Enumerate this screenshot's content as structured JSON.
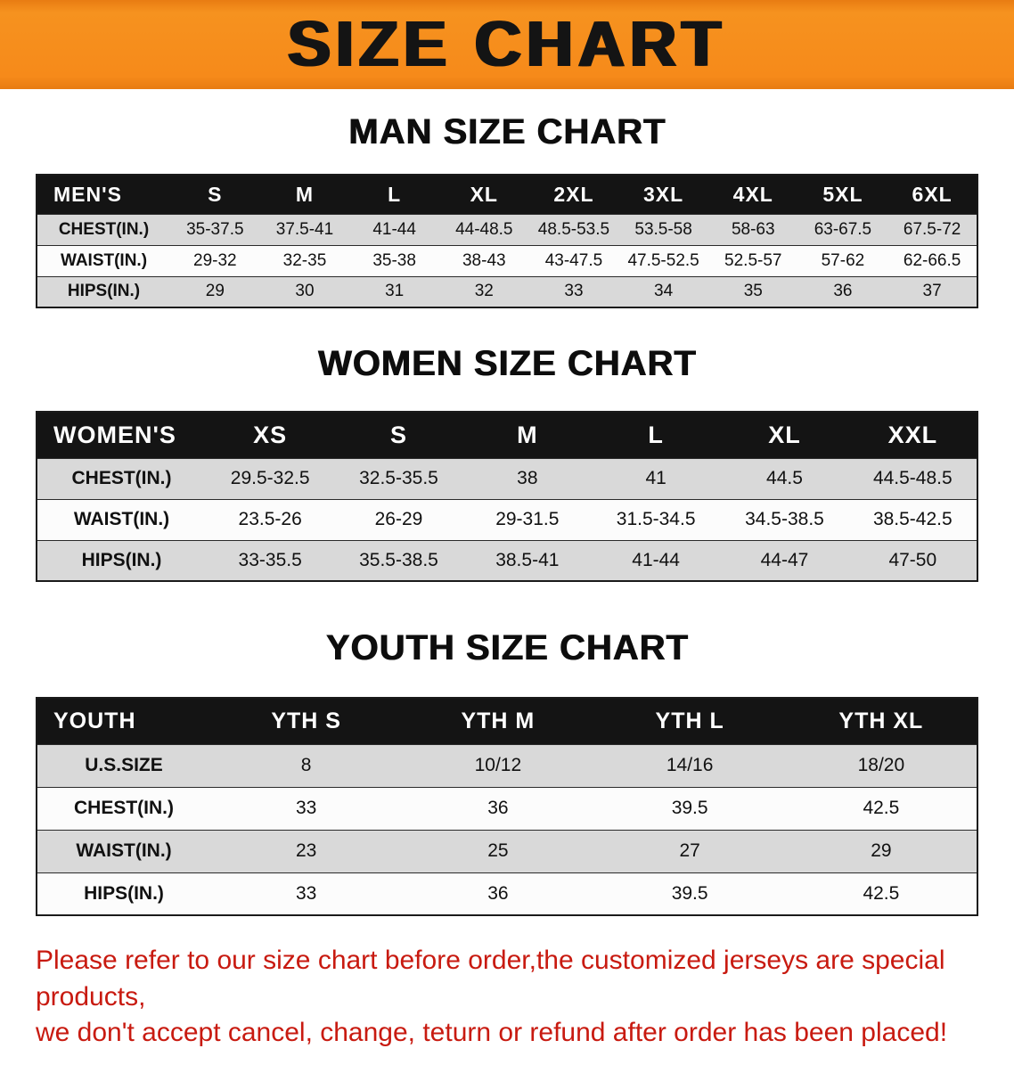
{
  "banner": {
    "title": "SIZE CHART",
    "bg_color": "#f68a1a",
    "text_color": "#141414"
  },
  "sections": [
    {
      "heading": "MAN SIZE CHART",
      "table": {
        "header": [
          "MEN'S",
          "S",
          "M",
          "L",
          "XL",
          "2XL",
          "3XL",
          "4XL",
          "5XL",
          "6XL"
        ],
        "rows": [
          [
            "CHEST(IN.)",
            "35-37.5",
            "37.5-41",
            "41-44",
            "44-48.5",
            "48.5-53.5",
            "53.5-58",
            "58-63",
            "63-67.5",
            "67.5-72"
          ],
          [
            "WAIST(IN.)",
            "29-32",
            "32-35",
            "35-38",
            "38-43",
            "43-47.5",
            "47.5-52.5",
            "52.5-57",
            "57-62",
            "62-66.5"
          ],
          [
            "HIPS(IN.)",
            "29",
            "30",
            "31",
            "32",
            "33",
            "34",
            "35",
            "36",
            "37"
          ]
        ]
      }
    },
    {
      "heading": "WOMEN SIZE CHART",
      "table": {
        "header": [
          "WOMEN'S",
          "XS",
          "S",
          "M",
          "L",
          "XL",
          "XXL"
        ],
        "rows": [
          [
            "CHEST(IN.)",
            "29.5-32.5",
            "32.5-35.5",
            "38",
            "41",
            "44.5",
            "44.5-48.5"
          ],
          [
            "WAIST(IN.)",
            "23.5-26",
            "26-29",
            "29-31.5",
            "31.5-34.5",
            "34.5-38.5",
            "38.5-42.5"
          ],
          [
            "HIPS(IN.)",
            "33-35.5",
            "35.5-38.5",
            "38.5-41",
            "41-44",
            "44-47",
            "47-50"
          ]
        ]
      }
    },
    {
      "heading": "YOUTH SIZE CHART",
      "table": {
        "header": [
          "YOUTH",
          "YTH S",
          "YTH M",
          "YTH L",
          "YTH XL"
        ],
        "rows": [
          [
            "U.S.SIZE",
            "8",
            "10/12",
            "14/16",
            "18/20"
          ],
          [
            "CHEST(IN.)",
            "33",
            "36",
            "39.5",
            "42.5"
          ],
          [
            "WAIST(IN.)",
            "23",
            "25",
            "27",
            "29"
          ],
          [
            "HIPS(IN.)",
            "33",
            "36",
            "39.5",
            "42.5"
          ]
        ]
      }
    }
  ],
  "footer": {
    "line1": "Please refer to our size chart before order,the customized jerseys are special products,",
    "line2": "we don't accept cancel, change, teturn or refund after order has been placed!",
    "text_color": "#c81a10"
  }
}
